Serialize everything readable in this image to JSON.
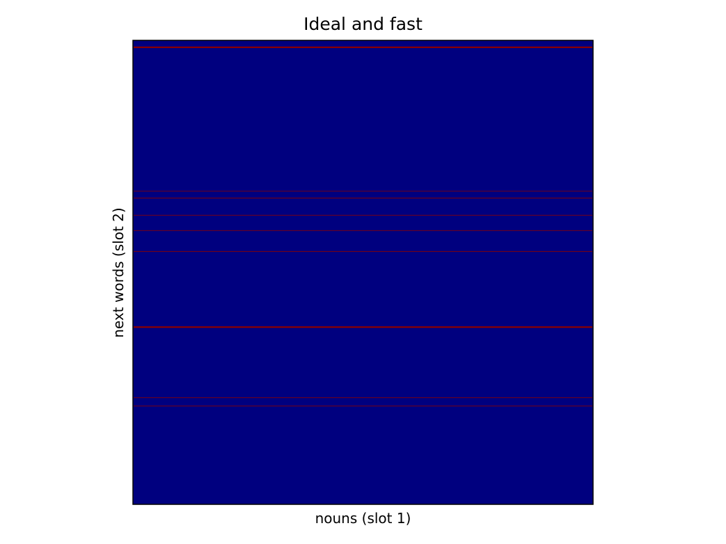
{
  "chart_data": {
    "type": "heatmap",
    "title": "Ideal and fast",
    "xlabel": "nouns (slot 1)",
    "ylabel": "next words (slot 2)",
    "x_ticks": [],
    "y_ticks": [],
    "grid": false,
    "legend": "none",
    "colormap": "jet",
    "background_value": 0,
    "background_color": "#00007f",
    "highlight_color": "#8b0000",
    "rows": 100,
    "highlighted_rows": [
      {
        "row": 1.5,
        "value": 1.0
      },
      {
        "row": 32.5,
        "value": 0.7
      },
      {
        "row": 34.0,
        "value": 0.8
      },
      {
        "row": 37.7,
        "value": 0.7
      },
      {
        "row": 41.0,
        "value": 0.7
      },
      {
        "row": 45.5,
        "value": 0.8
      },
      {
        "row": 61.8,
        "value": 1.0
      },
      {
        "row": 77.0,
        "value": 0.7
      },
      {
        "row": 78.8,
        "value": 0.7
      }
    ]
  }
}
